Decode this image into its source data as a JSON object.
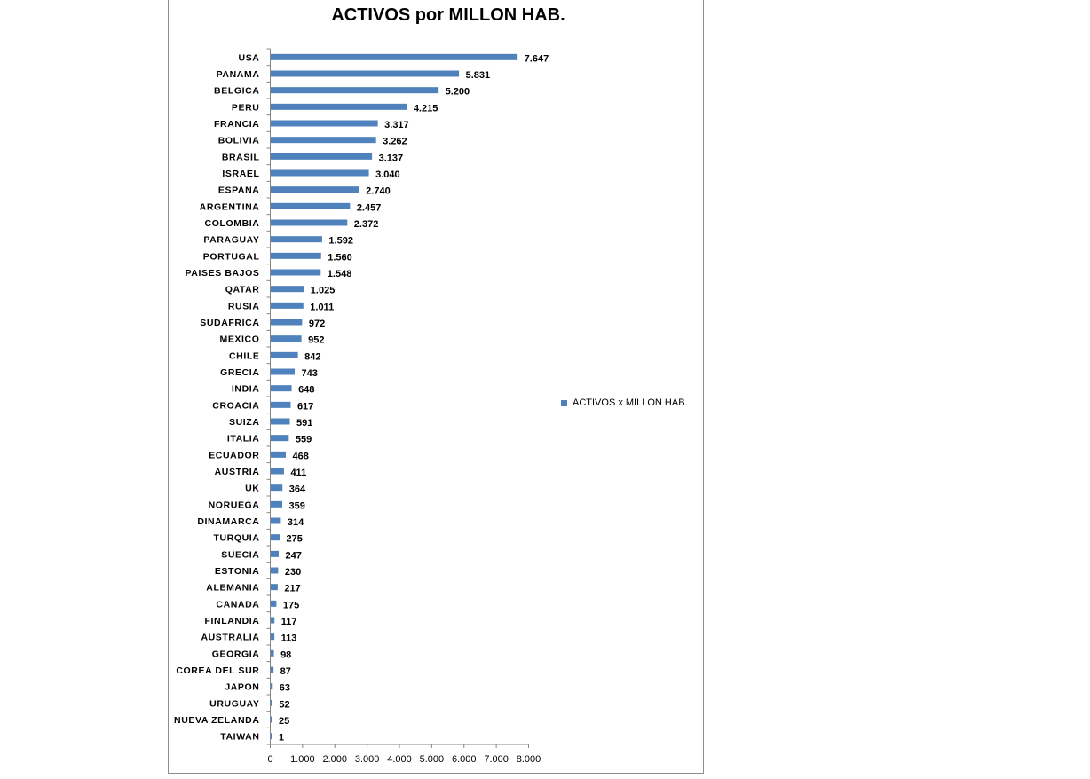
{
  "chart_data": {
    "type": "bar",
    "orientation": "horizontal",
    "title": "ACTIVOS por MILLON HAB.",
    "xlabel": "",
    "ylabel": "",
    "xlim": [
      0,
      8000
    ],
    "x_ticks": [
      0,
      1000,
      2000,
      3000,
      4000,
      5000,
      6000,
      7000,
      8000
    ],
    "x_tick_labels": [
      "0",
      "1.000",
      "2.000",
      "3.000",
      "4.000",
      "5.000",
      "6.000",
      "7.000",
      "8.000"
    ],
    "grid": false,
    "legend_position": "right",
    "bar_color": "#4f81bd",
    "categories": [
      "USA",
      "PANAMA",
      "BELGICA",
      "PERU",
      "FRANCIA",
      "BOLIVIA",
      "BRASIL",
      "ISRAEL",
      "ESPANA",
      "ARGENTINA",
      "COLOMBIA",
      "PARAGUAY",
      "PORTUGAL",
      "PAISES BAJOS",
      "QATAR",
      "RUSIA",
      "SUDAFRICA",
      "MEXICO",
      "CHILE",
      "GRECIA",
      "INDIA",
      "CROACIA",
      "SUIZA",
      "ITALIA",
      "ECUADOR",
      "AUSTRIA",
      "UK",
      "NORUEGA",
      "DINAMARCA",
      "TURQUIA",
      "SUECIA",
      "ESTONIA",
      "ALEMANIA",
      "CANADA",
      "FINLANDIA",
      "AUSTRALIA",
      "GEORGIA",
      "COREA DEL SUR",
      "JAPON",
      "URUGUAY",
      "NUEVA ZELANDA",
      "TAIWAN"
    ],
    "series": [
      {
        "name": "ACTIVOS  x MILLON HAB.",
        "values": [
          7647,
          5831,
          5200,
          4215,
          3317,
          3262,
          3137,
          3040,
          2740,
          2457,
          2372,
          1592,
          1560,
          1548,
          1025,
          1011,
          972,
          952,
          842,
          743,
          648,
          617,
          591,
          559,
          468,
          411,
          364,
          359,
          314,
          275,
          247,
          230,
          217,
          175,
          117,
          113,
          98,
          87,
          63,
          52,
          25,
          1
        ],
        "value_labels": [
          "7.647",
          "5.831",
          "5.200",
          "4.215",
          "3.317",
          "3.262",
          "3.137",
          "3.040",
          "2.740",
          "2.457",
          "2.372",
          "1.592",
          "1.560",
          "1.548",
          "1.025",
          "1.011",
          "972",
          "952",
          "842",
          "743",
          "648",
          "617",
          "591",
          "559",
          "468",
          "411",
          "364",
          "359",
          "314",
          "275",
          "247",
          "230",
          "217",
          "175",
          "117",
          "113",
          "98",
          "87",
          "63",
          "52",
          "25",
          "1"
        ]
      }
    ]
  }
}
